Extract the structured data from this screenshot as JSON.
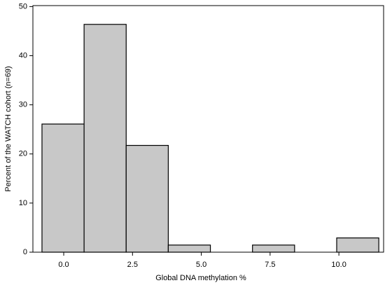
{
  "chart_data": {
    "type": "histogram",
    "xlabel": "Global DNA methylation %",
    "ylabel": "Percent of the WATCH cohort (n=69)",
    "bins": [
      -0.79,
      0.74,
      2.27,
      3.8,
      5.33,
      6.86,
      8.39,
      9.92,
      11.45
    ],
    "values": [
      26.09,
      46.38,
      21.74,
      1.45,
      0,
      1.45,
      0,
      2.9
    ],
    "color": "#c8c8c8",
    "xlim": [
      -1.12,
      11.65
    ],
    "xticks": [
      {
        "value": 0,
        "label": "0.0"
      },
      {
        "value": 2.5,
        "label": "2.5"
      },
      {
        "value": 5,
        "label": "5.0"
      },
      {
        "value": 7.5,
        "label": "7.5"
      },
      {
        "value": 10,
        "label": "10.0"
      }
    ],
    "ylim": [
      0,
      50.2
    ],
    "yticks": [
      0,
      10,
      20,
      30,
      40,
      50
    ]
  }
}
